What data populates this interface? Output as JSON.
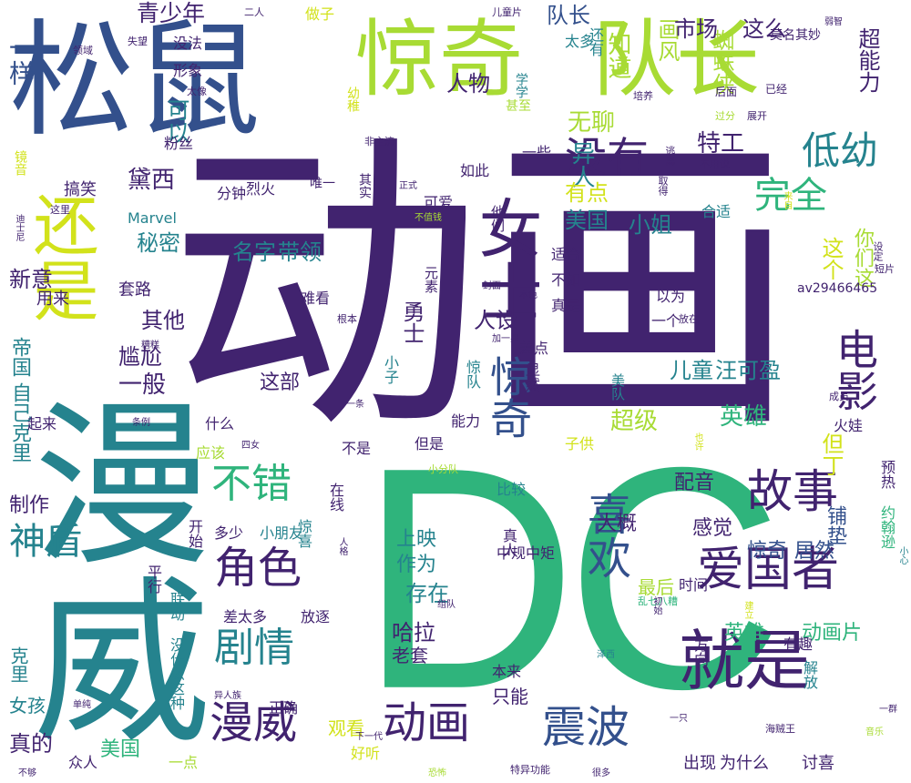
{
  "colors": {
    "background": "#ffffff",
    "purple": "#41236f",
    "blue": "#33508c",
    "teal": "#25838e",
    "green": "#2fb47c",
    "lime": "#a8db34",
    "yellow": "#d2e21b"
  },
  "words": [
    {
      "text": "动画",
      "weight": 100
    },
    {
      "text": "DC",
      "weight": 96
    },
    {
      "text": "漫威",
      "weight": 80
    },
    {
      "text": "松鼠",
      "weight": 70
    },
    {
      "text": "惊奇",
      "weight": 60
    },
    {
      "text": "队长",
      "weight": 58
    },
    {
      "text": "还是",
      "weight": 46
    },
    {
      "text": "女士",
      "weight": 44
    },
    {
      "text": "就是",
      "weight": 42
    },
    {
      "text": "爱国者",
      "weight": 36
    },
    {
      "text": "漫威",
      "weight": 34
    },
    {
      "text": "动画",
      "weight": 34
    },
    {
      "text": "震波",
      "weight": 34
    },
    {
      "text": "故事",
      "weight": 34
    },
    {
      "text": "角色",
      "weight": 33
    },
    {
      "text": "喜欢",
      "weight": 33
    },
    {
      "text": "没有",
      "weight": 32
    },
    {
      "text": "电影",
      "weight": 32
    },
    {
      "text": "惊奇",
      "weight": 32
    },
    {
      "text": "不错",
      "weight": 31
    },
    {
      "text": "剧情",
      "weight": 30
    },
    {
      "text": "低幼",
      "weight": 29
    },
    {
      "text": "完全",
      "weight": 28
    },
    {
      "text": "神盾",
      "weight": 27
    },
    {
      "text": "一样",
      "weight": 22
    },
    {
      "text": "青少年",
      "weight": 20
    },
    {
      "text": "无聊",
      "weight": 19
    },
    {
      "text": "知道",
      "weight": 19
    },
    {
      "text": "特工",
      "weight": 19
    },
    {
      "text": "异人",
      "weight": 19
    },
    {
      "text": "黛西",
      "weight": 19
    },
    {
      "text": "可以",
      "weight": 18
    },
    {
      "text": "蜘蛛侠",
      "weight": 18
    },
    {
      "text": "超能力",
      "weight": 18
    },
    {
      "text": "这么",
      "weight": 18
    },
    {
      "text": "画风",
      "weight": 17
    },
    {
      "text": "市场",
      "weight": 17
    },
    {
      "text": "人物",
      "weight": 17
    },
    {
      "text": "队长",
      "weight": 16
    },
    {
      "text": "秘密",
      "weight": 18
    },
    {
      "text": "名字",
      "weight": 18
    },
    {
      "text": "带领",
      "weight": 18
    },
    {
      "text": "这个",
      "weight": 18
    },
    {
      "text": "你们这",
      "weight": 15
    },
    {
      "text": "新意",
      "weight": 17
    },
    {
      "text": "其他",
      "weight": 18
    },
    {
      "text": "人设",
      "weight": 18
    },
    {
      "text": "勇士",
      "weight": 17
    },
    {
      "text": "美国",
      "weight": 17
    },
    {
      "text": "小姐",
      "weight": 17
    },
    {
      "text": "有点",
      "weight": 17
    },
    {
      "text": "一般",
      "weight": 19
    },
    {
      "text": "尴尬",
      "weight": 17
    },
    {
      "text": "儿童",
      "weight": 17
    },
    {
      "text": "汪可盈",
      "weight": 17
    },
    {
      "text": "超级",
      "weight": 19
    },
    {
      "text": "英雄",
      "weight": 19
    },
    {
      "text": "但丁",
      "weight": 17
    },
    {
      "text": "这部",
      "weight": 15
    },
    {
      "text": "帝国",
      "weight": 16
    },
    {
      "text": "自己克里",
      "weight": 16
    },
    {
      "text": "制作",
      "weight": 16
    },
    {
      "text": "配音",
      "weight": 17
    },
    {
      "text": "感觉",
      "weight": 17
    },
    {
      "text": "惊奇",
      "weight": 16
    },
    {
      "text": "居然",
      "weight": 16
    },
    {
      "text": "铺垫",
      "weight": 16
    },
    {
      "text": "上映",
      "weight": 16
    },
    {
      "text": "作为",
      "weight": 16
    },
    {
      "text": "存在",
      "weight": 17
    },
    {
      "text": "哈拉",
      "weight": 17
    },
    {
      "text": "大概",
      "weight": 16
    },
    {
      "text": "英雄",
      "weight": 18
    },
    {
      "text": "动画片",
      "weight": 18
    },
    {
      "text": "真的",
      "weight": 18
    },
    {
      "text": "美国",
      "weight": 16
    },
    {
      "text": "观看",
      "weight": 15
    },
    {
      "text": "出现",
      "weight": 15
    },
    {
      "text": "为什么",
      "weight": 15
    },
    {
      "text": "讨喜",
      "weight": 15
    },
    {
      "text": "克里",
      "weight": 15
    },
    {
      "text": "女孩",
      "weight": 15
    },
    {
      "text": "老套",
      "weight": 15
    },
    {
      "text": "只能",
      "weight": 15
    },
    {
      "text": "最后",
      "weight": 15
    },
    {
      "text": "Marvel",
      "weight": 14
    },
    {
      "text": "av29466465",
      "weight": 12
    },
    {
      "text": "套路",
      "weight": 14
    },
    {
      "text": "用来",
      "weight": 14
    },
    {
      "text": "搞笑",
      "weight": 14
    },
    {
      "text": "如此",
      "weight": 13
    },
    {
      "text": "可爱",
      "weight": 13
    },
    {
      "text": "一些",
      "weight": 13
    },
    {
      "text": "适合",
      "weight": 13
    },
    {
      "text": "不如",
      "weight": 14
    },
    {
      "text": "真是",
      "weight": 14
    },
    {
      "text": "以为",
      "weight": 14
    },
    {
      "text": "难看",
      "weight": 14
    },
    {
      "text": "起来",
      "weight": 14
    },
    {
      "text": "什么",
      "weight": 14
    },
    {
      "text": "应该",
      "weight": 14
    },
    {
      "text": "不是",
      "weight": 14
    },
    {
      "text": "但是",
      "weight": 14
    },
    {
      "text": "能力",
      "weight": 14
    },
    {
      "text": "子供",
      "weight": 14
    },
    {
      "text": "比较",
      "weight": 14
    },
    {
      "text": "多少",
      "weight": 14
    },
    {
      "text": "小朋友",
      "weight": 14
    },
    {
      "text": "差太多",
      "weight": 14
    },
    {
      "text": "放逐",
      "weight": 14
    },
    {
      "text": "正确",
      "weight": 14
    },
    {
      "text": "好听",
      "weight": 14
    },
    {
      "text": "众人",
      "weight": 14
    },
    {
      "text": "一点",
      "weight": 14
    },
    {
      "text": "做子",
      "weight": 14
    },
    {
      "text": "二人",
      "weight": 12
    },
    {
      "text": "儿童片",
      "weight": 11
    },
    {
      "text": "莫名其妙",
      "weight": 13
    },
    {
      "text": "后面",
      "weight": 12
    },
    {
      "text": "已经",
      "weight": 12
    },
    {
      "text": "学学",
      "weight": 12
    },
    {
      "text": "太多",
      "weight": 14
    },
    {
      "text": "还有",
      "weight": 14
    },
    {
      "text": "领域",
      "weight": 11
    },
    {
      "text": "失望",
      "weight": 11
    },
    {
      "text": "没法",
      "weight": 14
    },
    {
      "text": "形象",
      "weight": 14
    },
    {
      "text": "太像",
      "weight": 11
    },
    {
      "text": "粉丝",
      "weight": 14
    },
    {
      "text": "幼稚",
      "weight": 13
    },
    {
      "text": "甚至",
      "weight": 13
    },
    {
      "text": "非主流",
      "weight": 11
    },
    {
      "text": "分钟",
      "weight": 14
    },
    {
      "text": "烈火",
      "weight": 14
    },
    {
      "text": "唯一",
      "weight": 13
    },
    {
      "text": "其实",
      "weight": 13
    },
    {
      "text": "不值钱",
      "weight": 10
    },
    {
      "text": "他们",
      "weight": 13
    },
    {
      "text": "取得",
      "weight": 11
    },
    {
      "text": "不用说",
      "weight": 11
    },
    {
      "text": "逃离",
      "weight": 11
    },
    {
      "text": "培养",
      "weight": 11
    },
    {
      "text": "过分",
      "weight": 11
    },
    {
      "text": "展开",
      "weight": 11
    },
    {
      "text": "合适",
      "weight": 14
    },
    {
      "text": "来自",
      "weight": 10
    },
    {
      "text": "短片",
      "weight": 11
    },
    {
      "text": "设定",
      "weight": 11
    },
    {
      "text": "这里",
      "weight": 11
    },
    {
      "text": "迪士尼",
      "weight": 10
    },
    {
      "text": "镜音",
      "weight": 13
    },
    {
      "text": "正式",
      "weight": 10
    },
    {
      "text": "元素",
      "weight": 13
    },
    {
      "text": "封面",
      "weight": 11
    },
    {
      "text": "本色",
      "weight": 10
    },
    {
      "text": "根本",
      "weight": 11
    },
    {
      "text": "糟糕",
      "weight": 10
    },
    {
      "text": "加一星",
      "weight": 10
    },
    {
      "text": "差点",
      "weight": 12
    },
    {
      "text": "显然",
      "weight": 12
    },
    {
      "text": "惊队",
      "weight": 13
    },
    {
      "text": "小子",
      "weight": 13
    },
    {
      "text": "一条",
      "weight": 10
    },
    {
      "text": "美队",
      "weight": 12
    },
    {
      "text": "一个",
      "weight": 13
    },
    {
      "text": "放在",
      "weight": 11
    },
    {
      "text": "成员",
      "weight": 11
    },
    {
      "text": "火娃",
      "weight": 13
    },
    {
      "text": "也许",
      "weight": 10
    },
    {
      "text": "预热",
      "weight": 13
    },
    {
      "text": "约翰逊",
      "weight": 13
    },
    {
      "text": "四女",
      "weight": 10
    },
    {
      "text": "在线",
      "weight": 13
    },
    {
      "text": "小分队",
      "weight": 11
    },
    {
      "text": "开始",
      "weight": 13
    },
    {
      "text": "平行",
      "weight": 13
    },
    {
      "text": "联动",
      "weight": 13
    },
    {
      "text": "惊喜",
      "weight": 13
    },
    {
      "text": "中规中矩",
      "weight": 13
    },
    {
      "text": "真人",
      "weight": 13
    },
    {
      "text": "人格",
      "weight": 10
    },
    {
      "text": "乱七八糟",
      "weight": 11
    },
    {
      "text": "时间",
      "weight": 12
    },
    {
      "text": "组队",
      "weight": 10
    },
    {
      "text": "初始",
      "weight": 10
    },
    {
      "text": "建立",
      "weight": 10
    },
    {
      "text": "方向",
      "weight": 13
    },
    {
      "text": "小心",
      "weight": 10
    },
    {
      "text": "泽西",
      "weight": 10
    },
    {
      "text": "有趣",
      "weight": 13
    },
    {
      "text": "解放",
      "weight": 13
    },
    {
      "text": "没什么这种",
      "weight": 13
    },
    {
      "text": "异人族",
      "weight": 11
    },
    {
      "text": "本来",
      "weight": 12
    },
    {
      "text": "下一代",
      "weight": 10
    },
    {
      "text": "特异功能",
      "weight": 11
    },
    {
      "text": "一只",
      "weight": 10
    },
    {
      "text": "海贼王",
      "weight": 11
    },
    {
      "text": "音乐",
      "weight": 10
    },
    {
      "text": "一群",
      "weight": 10
    },
    {
      "text": "弱智",
      "weight": 10
    },
    {
      "text": "不够",
      "weight": 10
    },
    {
      "text": "单纯",
      "weight": 10
    },
    {
      "text": "恐怖",
      "weight": 10
    },
    {
      "text": "很多",
      "weight": 10
    },
    {
      "text": "条例",
      "weight": 10
    }
  ]
}
